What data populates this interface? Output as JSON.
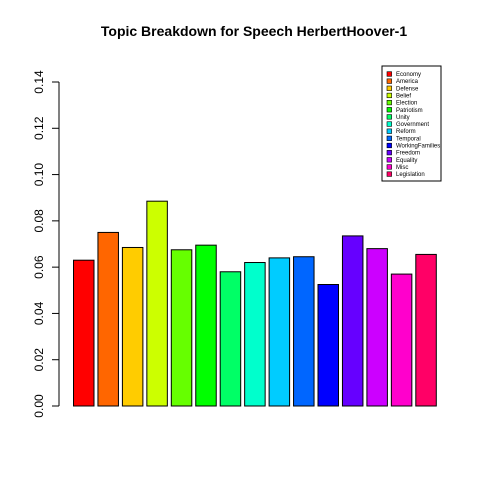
{
  "chart_data": {
    "type": "bar",
    "title": "Topic Breakdown for Speech HerbertHoover-1",
    "xlabel": "",
    "ylabel": "",
    "ylim": [
      0,
      0.14
    ],
    "y_ticks": [
      "0.00",
      "0.02",
      "0.04",
      "0.06",
      "0.08",
      "0.10",
      "0.12",
      "0.14"
    ],
    "y_tick_values": [
      0,
      0.02,
      0.04,
      0.06,
      0.08,
      0.1,
      0.12,
      0.14
    ],
    "grid": false,
    "legend_position": "top-right",
    "categories": [
      "Economy",
      "America",
      "Defense",
      "Belief",
      "Election",
      "Patriotism",
      "Unity",
      "Government",
      "Reform",
      "Temporal",
      "WorkingFamilies",
      "Freedom",
      "Equality",
      "Misc",
      "Legislation"
    ],
    "values": [
      0.063,
      0.075,
      0.0685,
      0.0885,
      0.0675,
      0.0695,
      0.058,
      0.062,
      0.064,
      0.0645,
      0.0525,
      0.0735,
      0.068,
      0.057,
      0.0655
    ],
    "colors": [
      "#FF0000",
      "#FF6600",
      "#FFCC00",
      "#CCFF00",
      "#66FF00",
      "#00FF00",
      "#00FF66",
      "#00FFCC",
      "#00CCFF",
      "#0066FF",
      "#0000FF",
      "#6600FF",
      "#CC00FF",
      "#FF00CC",
      "#FF0066"
    ]
  }
}
